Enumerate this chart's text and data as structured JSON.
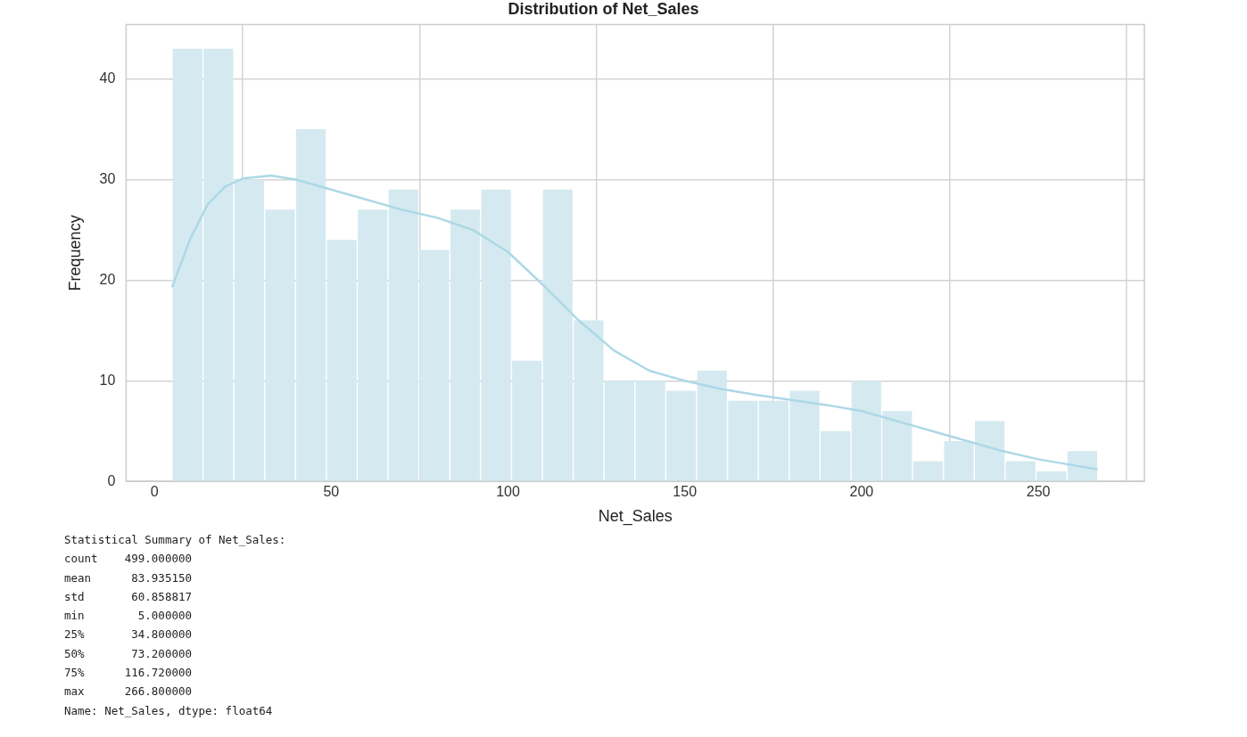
{
  "chart_data": {
    "type": "histogram",
    "title": "Distribution of Net_Sales",
    "xlabel": "Net_Sales",
    "ylabel": "Frequency",
    "bins": [
      5,
      13.73,
      22.45,
      31.18,
      39.91,
      48.63,
      57.36,
      66.09,
      74.81,
      83.54,
      92.27,
      100.99,
      109.72,
      118.45,
      127.17,
      135.9,
      144.63,
      153.35,
      162.08,
      170.81,
      179.53,
      188.26,
      196.99,
      205.71,
      214.44,
      223.17,
      231.89,
      240.62,
      249.35,
      258.07,
      266.8
    ],
    "values": [
      43,
      43,
      30,
      27,
      35,
      24,
      27,
      29,
      23,
      27,
      29,
      12,
      29,
      16,
      10,
      10,
      9,
      11,
      8,
      8,
      9,
      5,
      10,
      7,
      2,
      4,
      6,
      2,
      1,
      3
    ],
    "color": "#d4eaf0",
    "series": [
      {
        "type": "line",
        "color": "#add8e6",
        "x": [
          5,
          10,
          15,
          20,
          25,
          33,
          40,
          50,
          60,
          70,
          80,
          90,
          100,
          110,
          120,
          130,
          140,
          150,
          160,
          170,
          180,
          190,
          200,
          210,
          220,
          230,
          240,
          250,
          260,
          266.8
        ],
        "values": [
          19.3,
          24,
          27.5,
          29.3,
          30.1,
          30.4,
          30,
          29,
          28,
          27,
          26.2,
          25,
          22.8,
          19.5,
          16,
          13,
          11,
          10,
          9.2,
          8.6,
          8.1,
          7.6,
          7,
          6,
          5,
          4,
          3,
          2.2,
          1.6,
          1.2
        ]
      }
    ],
    "xlim": [
      -8,
      280
    ],
    "xticks": [
      0,
      50,
      100,
      150,
      200,
      250
    ],
    "ylim": [
      0,
      45.4
    ],
    "yticks": [
      0,
      10,
      20,
      30,
      40
    ],
    "grid": true,
    "legend": false,
    "annotations": [
      "Statistical Summary of Net_Sales:",
      "count    499.000000",
      "mean      83.935150",
      "std       60.858817",
      "min        5.000000",
      "25%       34.800000",
      "50%       73.200000",
      "75%      116.720000",
      "max      266.800000",
      "Name: Net_Sales, dtype: float64"
    ]
  }
}
